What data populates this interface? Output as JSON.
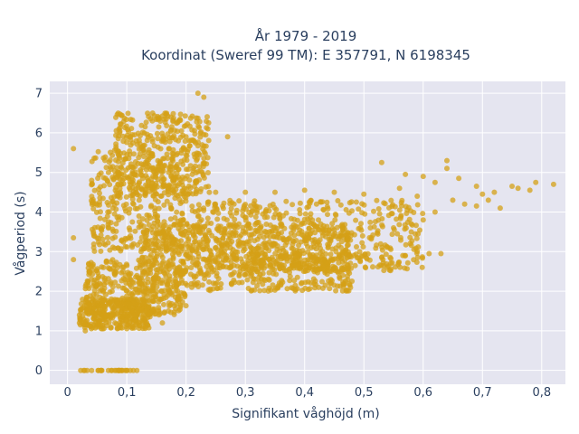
{
  "chart_data": {
    "type": "scatter",
    "title_line1": "År 1979 - 2019",
    "title_line2": "Koordinat (Sweref 99 TM): E 357791, N 6198345",
    "xlabel": "Signifikant våghöjd (m)",
    "ylabel": "Vågperiod (s)",
    "xlim": [
      -0.03,
      0.84
    ],
    "ylim": [
      -0.35,
      7.3
    ],
    "xticks": [
      0,
      0.1,
      0.2,
      0.3,
      0.4,
      0.5,
      0.6,
      0.7,
      0.8
    ],
    "xtick_labels": [
      "0",
      "0,1",
      "0,2",
      "0,3",
      "0,4",
      "0,5",
      "0,6",
      "0,7",
      "0,8"
    ],
    "yticks": [
      0,
      1,
      2,
      3,
      4,
      5,
      6,
      7
    ],
    "ytick_labels": [
      "0",
      "1",
      "2",
      "3",
      "4",
      "5",
      "6",
      "7"
    ],
    "grid": true,
    "marker_color": "#d4a017",
    "plot_bg": "#e5e5f0",
    "clusters": [
      {
        "x": [
          0.01,
          0.12
        ],
        "y": [
          0,
          0
        ],
        "n": 30
      },
      {
        "x": [
          0.02,
          0.14
        ],
        "y": [
          1.05,
          1.8
        ],
        "n": 320
      },
      {
        "x": [
          0.03,
          0.2
        ],
        "y": [
          1.4,
          2.8
        ],
        "n": 380
      },
      {
        "x": [
          0.12,
          0.48
        ],
        "y": [
          2.0,
          3.7
        ],
        "n": 700
      },
      {
        "x": [
          0.2,
          0.6
        ],
        "y": [
          2.5,
          4.3
        ],
        "n": 500
      },
      {
        "x": [
          0.04,
          0.2
        ],
        "y": [
          3.0,
          5.6
        ],
        "n": 380
      },
      {
        "x": [
          0.08,
          0.24
        ],
        "y": [
          4.4,
          6.5
        ],
        "n": 380
      },
      {
        "x": [
          0.3,
          0.55
        ],
        "y": [
          2.5,
          2.95
        ],
        "n": 120
      }
    ],
    "points": [
      {
        "x": 0.22,
        "y": 7.0
      },
      {
        "x": 0.23,
        "y": 6.9
      },
      {
        "x": 0.27,
        "y": 5.9
      },
      {
        "x": 0.01,
        "y": 5.6
      },
      {
        "x": 0.01,
        "y": 3.35
      },
      {
        "x": 0.01,
        "y": 2.8
      },
      {
        "x": 0.53,
        "y": 5.25
      },
      {
        "x": 0.64,
        "y": 5.3
      },
      {
        "x": 0.64,
        "y": 5.1
      },
      {
        "x": 0.57,
        "y": 4.95
      },
      {
        "x": 0.6,
        "y": 4.9
      },
      {
        "x": 0.66,
        "y": 4.85
      },
      {
        "x": 0.62,
        "y": 4.75
      },
      {
        "x": 0.69,
        "y": 4.65
      },
      {
        "x": 0.72,
        "y": 4.5
      },
      {
        "x": 0.75,
        "y": 4.65
      },
      {
        "x": 0.76,
        "y": 4.6
      },
      {
        "x": 0.78,
        "y": 4.55
      },
      {
        "x": 0.79,
        "y": 4.75
      },
      {
        "x": 0.82,
        "y": 4.7
      },
      {
        "x": 0.7,
        "y": 4.45
      },
      {
        "x": 0.65,
        "y": 4.3
      },
      {
        "x": 0.67,
        "y": 4.2
      },
      {
        "x": 0.69,
        "y": 4.15
      },
      {
        "x": 0.71,
        "y": 4.3
      },
      {
        "x": 0.73,
        "y": 4.1
      },
      {
        "x": 0.62,
        "y": 4.0
      },
      {
        "x": 0.6,
        "y": 3.8
      },
      {
        "x": 0.58,
        "y": 3.7
      },
      {
        "x": 0.55,
        "y": 3.6
      },
      {
        "x": 0.63,
        "y": 2.95
      },
      {
        "x": 0.61,
        "y": 2.95
      },
      {
        "x": 0.57,
        "y": 2.9
      },
      {
        "x": 0.53,
        "y": 2.85
      },
      {
        "x": 0.59,
        "y": 4.4
      },
      {
        "x": 0.56,
        "y": 4.6
      },
      {
        "x": 0.5,
        "y": 4.45
      },
      {
        "x": 0.45,
        "y": 4.5
      },
      {
        "x": 0.4,
        "y": 4.55
      },
      {
        "x": 0.35,
        "y": 4.5
      },
      {
        "x": 0.3,
        "y": 4.5
      },
      {
        "x": 0.25,
        "y": 4.5
      },
      {
        "x": 0.08,
        "y": 1.2
      },
      {
        "x": 0.12,
        "y": 1.2
      },
      {
        "x": 0.16,
        "y": 1.2
      },
      {
        "x": 0.02,
        "y": 1.2
      },
      {
        "x": 0.02,
        "y": 1.4
      },
      {
        "x": 0.03,
        "y": 1.0
      }
    ]
  }
}
